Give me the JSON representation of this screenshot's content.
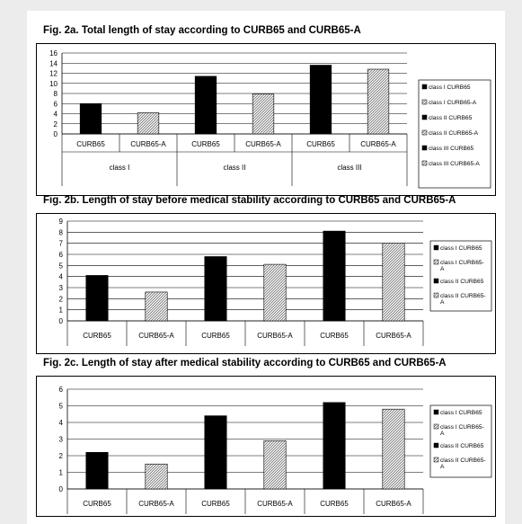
{
  "colors": {
    "black_bar": "#000000",
    "hatched_bar": "#d4d4d4",
    "page_bg": "#ececec",
    "panel_bg": "#ffffff"
  },
  "chart_data": [
    {
      "type": "bar",
      "title": "Fig. 2a. Total length of stay according to CURB65 and CURB65-A",
      "categories": [
        "CURB65",
        "CURB65-A",
        "CURB65",
        "CURB65-A",
        "CURB65",
        "CURB65-A"
      ],
      "groups": [
        "class I",
        "class II",
        "class III"
      ],
      "values": [
        6,
        4.2,
        11.4,
        7.9,
        13.6,
        12.8
      ],
      "styles": [
        "solid",
        "hatched",
        "solid",
        "hatched",
        "solid",
        "hatched"
      ],
      "ylim": [
        0,
        16
      ],
      "yticks": [
        0,
        2,
        4,
        6,
        8,
        10,
        12,
        14,
        16
      ],
      "legend": [
        "class I CURB65",
        "class I CURB65-A",
        "class II CURB65",
        "class II CURB65-A",
        "class III CURB65",
        "class III CURB65-A"
      ],
      "legend_styles": [
        "solid",
        "hatched",
        "solid",
        "hatched",
        "solid",
        "hatched"
      ],
      "legend_position": "right",
      "grid": true
    },
    {
      "type": "bar",
      "title": "Fig. 2b. Length of stay before medical stability according to CURB65 and CURB65-A",
      "categories": [
        "CURB65",
        "CURB65-A",
        "CURB65",
        "CURB65-A",
        "CURB65",
        "CURB65-A"
      ],
      "values": [
        4.1,
        2.6,
        5.8,
        5.1,
        8.1,
        7
      ],
      "styles": [
        "solid",
        "hatched",
        "solid",
        "hatched",
        "solid",
        "hatched"
      ],
      "ylim": [
        0,
        9
      ],
      "yticks": [
        0,
        1,
        2,
        3,
        4,
        5,
        6,
        7,
        8,
        9
      ],
      "legend": [
        "class I CURB65",
        "class I CURB65-A",
        "class II CURB65",
        "class II CURB65-A"
      ],
      "legend_styles": [
        "solid",
        "hatched",
        "solid",
        "hatched"
      ],
      "legend_position": "right",
      "grid": true
    },
    {
      "type": "bar",
      "title": "Fig. 2c. Length of stay after medical stability according to CURB65 and CURB65-A",
      "categories": [
        "CURB65",
        "CURB65-A",
        "CURB65",
        "CURB65-A",
        "CURB65",
        "CURB65-A"
      ],
      "values": [
        2.2,
        1.5,
        4.4,
        2.9,
        5.2,
        4.8
      ],
      "styles": [
        "solid",
        "hatched",
        "solid",
        "hatched",
        "solid",
        "hatched"
      ],
      "ylim": [
        0,
        6
      ],
      "yticks": [
        0,
        1,
        2,
        3,
        4,
        5,
        6
      ],
      "legend": [
        "class I CURB65",
        "class I CURB65-A",
        "class II CURB65",
        "class II CURB65-A"
      ],
      "legend_styles": [
        "solid",
        "hatched",
        "solid",
        "hatched"
      ],
      "legend_position": "right",
      "grid": true
    }
  ]
}
